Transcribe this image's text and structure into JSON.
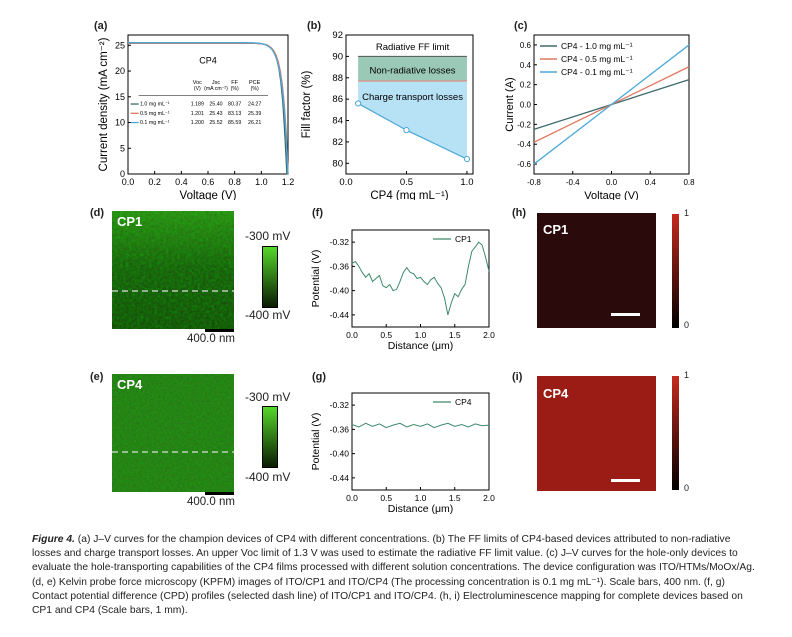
{
  "panels": {
    "a": "(a)",
    "b": "(b)",
    "c": "(c)",
    "d": "(d)",
    "e": "(e)",
    "f": "(f)",
    "g": "(g)",
    "h": "(h)",
    "i": "(i)"
  },
  "chart_data": [
    {
      "id": "a",
      "type": "line",
      "title": "CP4",
      "xlabel": "Voltage (V)",
      "ylabel": "Current density (mA cm⁻²)",
      "xlim": [
        0.0,
        1.2
      ],
      "ylim": [
        0,
        27
      ],
      "xticks": [
        "0.0",
        "0.2",
        "0.4",
        "0.6",
        "0.8",
        "1.0",
        "1.2"
      ],
      "yticks": [
        "0",
        "5",
        "10",
        "15",
        "20",
        "25"
      ],
      "series": [
        {
          "name": "1.0 mg mL⁻¹",
          "color": "#3d6b6b",
          "voc": 1.189,
          "jsc": 25.4,
          "ff": 80.37,
          "pce": 24.27
        },
        {
          "name": "0.5 mg mL⁻¹",
          "color": "#e07860",
          "voc": 1.201,
          "jsc": 25.43,
          "ff": 83.13,
          "pce": 25.39
        },
        {
          "name": "0.1 mg mL⁻¹",
          "color": "#4aa8d8",
          "voc": 1.2,
          "jsc": 25.52,
          "ff": 85.59,
          "pce": 26.21
        }
      ],
      "table": {
        "headers": [
          "",
          "Voc",
          "Jsc",
          "FF",
          "PCE"
        ],
        "units": [
          "",
          "(V)",
          "(mA cm⁻²)",
          "(%)",
          "(%)"
        ],
        "rows": [
          [
            "1.0 mg mL⁻¹",
            "1.189",
            "25.40",
            "80.37",
            "24.27"
          ],
          [
            "0.5 mg mL⁻¹",
            "1.201",
            "25.43",
            "83.13",
            "25.39"
          ],
          [
            "0.1 mg mL⁻¹",
            "1.200",
            "25.52",
            "85.59",
            "26.21"
          ]
        ]
      }
    },
    {
      "id": "b",
      "type": "area",
      "xlabel": "CP4 (mg mL⁻¹)",
      "ylabel": "Fill factor (%)",
      "xlim": [
        0.0,
        1.05
      ],
      "ylim": [
        79,
        92
      ],
      "xticks": [
        "0.0",
        "0.5",
        "1.0"
      ],
      "yticks": [
        "80",
        "82",
        "84",
        "86",
        "88",
        "90",
        "92"
      ],
      "x": [
        0.1,
        0.5,
        1.0
      ],
      "ff": [
        85.6,
        83.1,
        80.4
      ],
      "radiative_limit": 90.0,
      "nonradiative_limit": 87.7,
      "labels": [
        "Radiative FF limit",
        "Non-radiative losses",
        "Charge transport losses"
      ]
    },
    {
      "id": "c",
      "type": "line",
      "xlabel": "Voltage (V)",
      "ylabel": "Current (A)",
      "xlim": [
        -0.8,
        0.8
      ],
      "ylim": [
        -0.7,
        0.7
      ],
      "xticks": [
        "-0.8",
        "-0.4",
        "0.0",
        "0.4",
        "0.8"
      ],
      "yticks": [
        "-0.6",
        "-0.4",
        "-0.2",
        "0.0",
        "0.2",
        "0.4",
        "0.6"
      ],
      "series": [
        {
          "name": "CP4 - 1.0 mg mL⁻¹",
          "color": "#3d6b6b",
          "x": [
            -0.8,
            0.8
          ],
          "y": [
            -0.25,
            0.25
          ]
        },
        {
          "name": "CP4 - 0.5 mg mL⁻¹",
          "color": "#e07860",
          "x": [
            -0.8,
            0.8
          ],
          "y": [
            -0.38,
            0.38
          ]
        },
        {
          "name": "CP4 - 0.1 mg mL⁻¹",
          "color": "#4aa8d8",
          "x": [
            -0.8,
            0.8
          ],
          "y": [
            -0.6,
            0.6
          ]
        }
      ]
    },
    {
      "id": "f",
      "type": "line",
      "xlabel": "Distance (μm)",
      "ylabel": "Potential (V)",
      "xlim": [
        0.0,
        2.0
      ],
      "ylim": [
        -0.46,
        -0.3
      ],
      "xticks": [
        "0.0",
        "0.5",
        "1.0",
        "1.5",
        "2.0"
      ],
      "yticks": [
        "-0.32",
        "-0.36",
        "-0.40",
        "-0.44"
      ],
      "series": [
        {
          "name": "CP1",
          "color": "#3d8a6a",
          "x": [
            0.0,
            0.05,
            0.1,
            0.15,
            0.2,
            0.25,
            0.3,
            0.35,
            0.4,
            0.45,
            0.5,
            0.55,
            0.6,
            0.65,
            0.7,
            0.75,
            0.8,
            0.85,
            0.9,
            0.95,
            1.0,
            1.05,
            1.1,
            1.15,
            1.2,
            1.25,
            1.3,
            1.35,
            1.4,
            1.45,
            1.5,
            1.55,
            1.6,
            1.65,
            1.7,
            1.75,
            1.8,
            1.85,
            1.9,
            1.95,
            2.0
          ],
          "y": [
            -0.355,
            -0.352,
            -0.36,
            -0.37,
            -0.378,
            -0.372,
            -0.385,
            -0.38,
            -0.375,
            -0.392,
            -0.395,
            -0.39,
            -0.4,
            -0.398,
            -0.385,
            -0.37,
            -0.362,
            -0.37,
            -0.372,
            -0.38,
            -0.378,
            -0.385,
            -0.39,
            -0.382,
            -0.378,
            -0.388,
            -0.395,
            -0.412,
            -0.44,
            -0.42,
            -0.405,
            -0.41,
            -0.398,
            -0.39,
            -0.36,
            -0.335,
            -0.328,
            -0.32,
            -0.325,
            -0.345,
            -0.368
          ]
        }
      ]
    },
    {
      "id": "g",
      "type": "line",
      "xlabel": "Distance (μm)",
      "ylabel": "Potential (V)",
      "xlim": [
        0.0,
        2.0
      ],
      "ylim": [
        -0.46,
        -0.3
      ],
      "xticks": [
        "0.0",
        "0.5",
        "1.0",
        "1.5",
        "2.0"
      ],
      "yticks": [
        "-0.32",
        "-0.36",
        "-0.40",
        "-0.44"
      ],
      "series": [
        {
          "name": "CP4",
          "color": "#3d8a6a",
          "x": [
            0.0,
            0.1,
            0.2,
            0.3,
            0.4,
            0.5,
            0.6,
            0.7,
            0.8,
            0.9,
            1.0,
            1.1,
            1.2,
            1.3,
            1.4,
            1.5,
            1.6,
            1.7,
            1.8,
            1.9,
            2.0
          ],
          "y": [
            -0.352,
            -0.356,
            -0.35,
            -0.355,
            -0.351,
            -0.357,
            -0.353,
            -0.35,
            -0.356,
            -0.352,
            -0.355,
            -0.351,
            -0.357,
            -0.353,
            -0.35,
            -0.355,
            -0.352,
            -0.356,
            -0.351,
            -0.354,
            -0.353
          ]
        }
      ]
    }
  ],
  "kpfm": {
    "cp1_label": "CP1",
    "cp4_label": "CP4",
    "scale_high": "-300 mV",
    "scale_low": "-400 mV",
    "scale_bar": "400.0 nm"
  },
  "el": {
    "cp1_label": "CP1",
    "cp4_label": "CP4",
    "scale_high": "1",
    "scale_low": "0",
    "cp1_color": "#2a0a0a",
    "cp4_color": "#9a1c14"
  },
  "caption": {
    "fig": "Figure 4.",
    "text": "(a) J–V curves for the champion devices of CP4 with different concentrations. (b) The FF limits of CP4-based devices attributed to non-radiative losses and charge transport losses. An upper Voc limit of 1.3 V was used to estimate the radiative FF limit value. (c) J–V curves for the hole-only devices to evaluate the hole-transporting capabilities of the CP4 films processed with different solution concentrations. The device configuration was ITO/HTMs/MoOx/Ag. (d, e) Kelvin probe force microscopy (KPFM) images of ITO/CP1 and ITO/CP4 (The processing concentration is 0.1 mg mL⁻¹). Scale bars, 400 nm. (f, g) Contact potential difference (CPD) profiles (selected dash line) of ITO/CP1 and ITO/CP4. (h, i) Electroluminescence mapping for complete devices based on CP1 and CP4 (Scale bars, 1 mm)."
  }
}
